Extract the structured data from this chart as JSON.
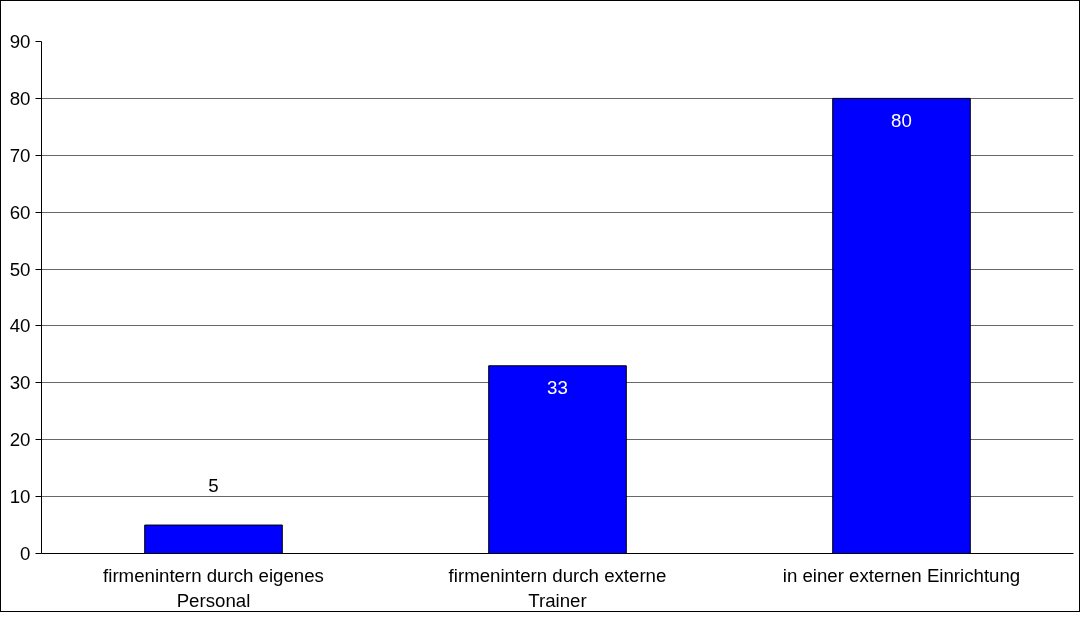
{
  "chart_data": {
    "type": "bar",
    "categories": [
      "firmenintern durch eigenes Personal",
      "firmenintern durch externe Trainer",
      "in einer externen Einrichtung"
    ],
    "values": [
      5,
      33,
      80
    ],
    "color": "#0000ff",
    "ylim": [
      0,
      90
    ],
    "yticks": [
      0,
      10,
      20,
      30,
      40,
      50,
      60,
      70,
      80,
      90
    ],
    "grid": "y",
    "data_labels": true
  }
}
